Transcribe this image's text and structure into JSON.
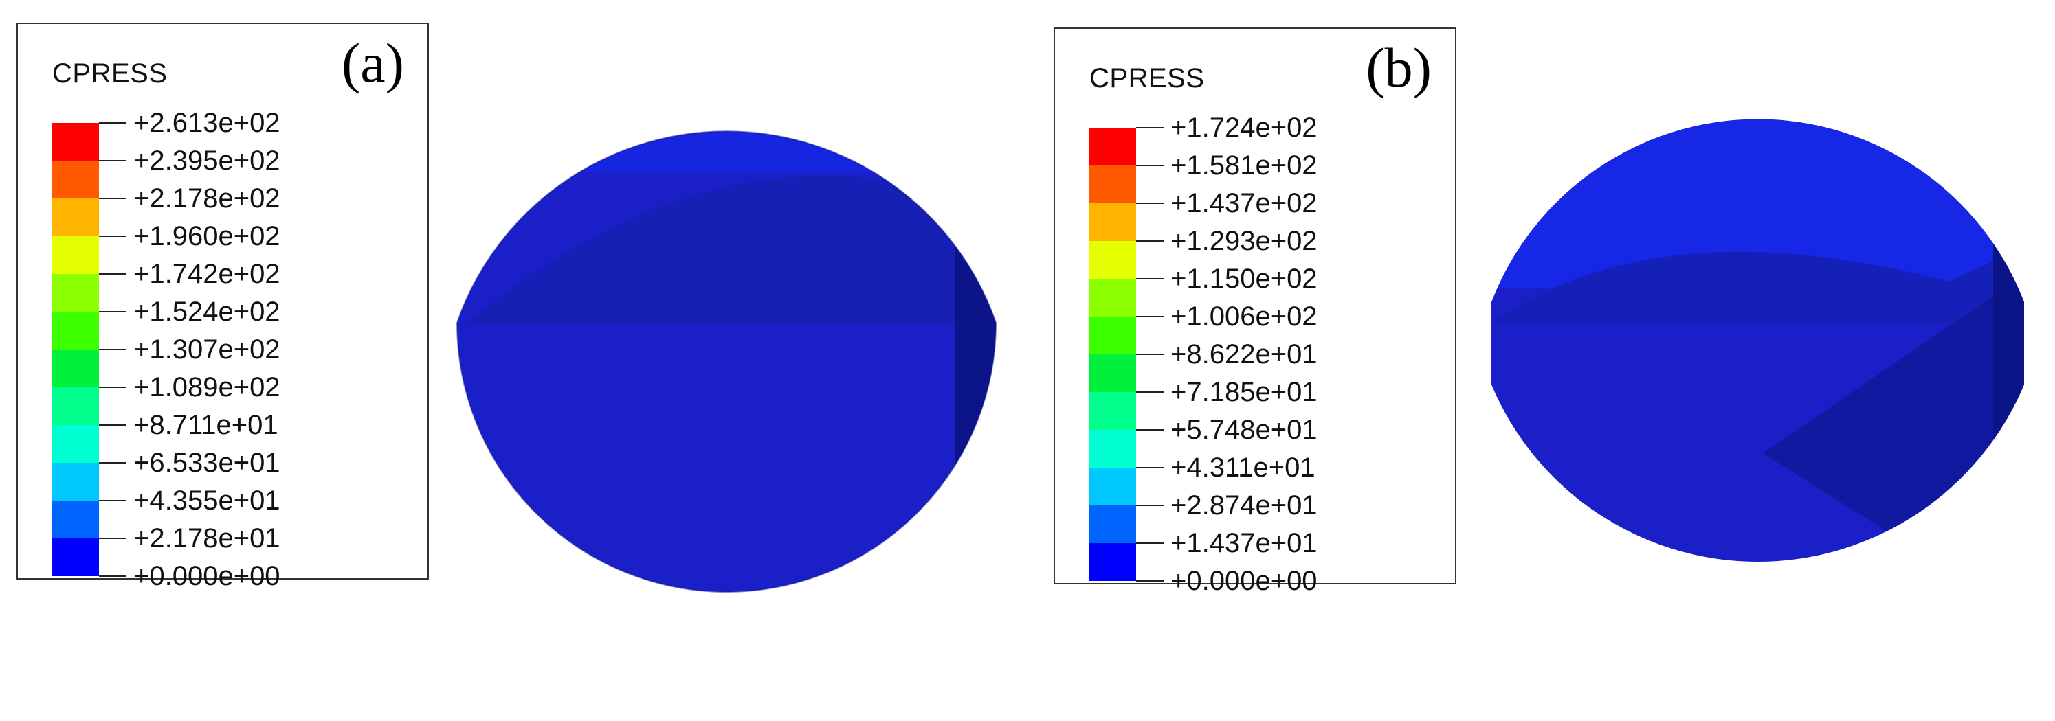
{
  "figure": {
    "panels": [
      {
        "letter": "(a)",
        "legend": {
          "title": "CPRESS",
          "levels": [
            "+2.613e+02",
            "+2.395e+02",
            "+2.178e+02",
            "+1.960e+02",
            "+1.742e+02",
            "+1.524e+02",
            "+1.307e+02",
            "+1.089e+02",
            "+8.711e+01",
            "+6.533e+01",
            "+4.355e+01",
            "+2.178e+01",
            "+0.000e+00"
          ]
        }
      },
      {
        "letter": "(b)",
        "legend": {
          "title": "CPRESS",
          "levels": [
            "+1.724e+02",
            "+1.581e+02",
            "+1.437e+02",
            "+1.293e+02",
            "+1.150e+02",
            "+1.006e+02",
            "+8.622e+01",
            "+7.185e+01",
            "+5.748e+01",
            "+4.311e+01",
            "+2.874e+01",
            "+1.437e+01",
            "+0.000e+00"
          ]
        }
      }
    ],
    "colormap": [
      "#ff0000",
      "#ff5a00",
      "#ffb400",
      "#e6ff00",
      "#8cff00",
      "#3cff00",
      "#00f03c",
      "#00ff8c",
      "#00ffd2",
      "#00c8ff",
      "#0064ff",
      "#0000ff"
    ]
  }
}
